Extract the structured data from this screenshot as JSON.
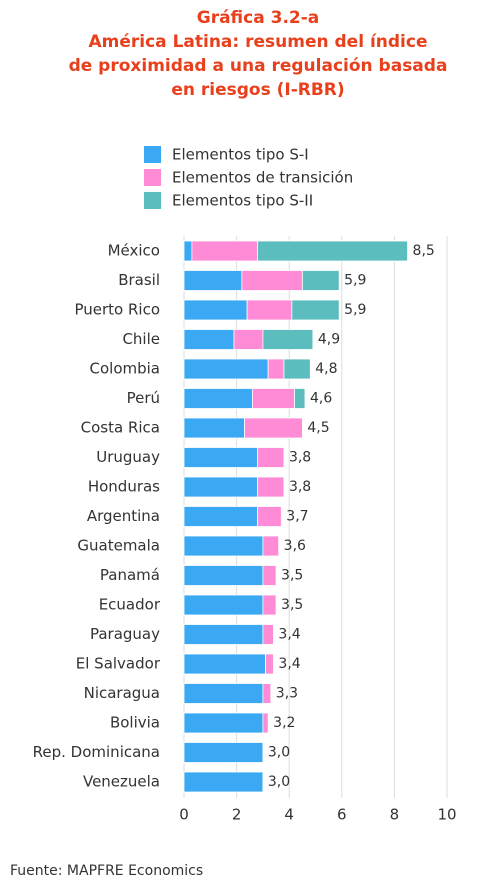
{
  "chart_data": {
    "type": "stacked_barh",
    "title": [
      "Gráfica 3.2-a",
      "América Latina: resumen del índice",
      "de proximidad a una regulación basada",
      "en riesgos (I-RBR)"
    ],
    "categories": [
      "México",
      "Brasil",
      "Puerto Rico",
      "Chile",
      "Colombia",
      "Perú",
      "Costa Rica",
      "Uruguay",
      "Honduras",
      "Argentina",
      "Guatemala",
      "Panamá",
      "Ecuador",
      "Paraguay",
      "El Salvador",
      "Nicaragua",
      "Bolivia",
      "Rep. Dominicana",
      "Venezuela"
    ],
    "series": [
      {
        "name": "Elementos tipo S-I",
        "color": "#3aa8f2",
        "values": [
          0.3,
          2.2,
          2.4,
          1.9,
          3.2,
          2.6,
          2.3,
          2.8,
          2.8,
          2.8,
          3.0,
          3.0,
          3.0,
          3.0,
          3.1,
          3.0,
          3.0,
          3.0,
          3.0
        ]
      },
      {
        "name": "Elementos de transición",
        "color": "#ff8ad6",
        "values": [
          2.5,
          2.3,
          1.7,
          1.1,
          0.6,
          1.6,
          2.2,
          1.0,
          1.0,
          0.9,
          0.6,
          0.5,
          0.5,
          0.4,
          0.3,
          0.3,
          0.2,
          0.0,
          0.0
        ]
      },
      {
        "name": "Elementos tipo S-II",
        "color": "#5bbdbd",
        "values": [
          5.7,
          1.4,
          1.8,
          1.9,
          1.0,
          0.4,
          0.0,
          0.0,
          0.0,
          0.0,
          0.0,
          0.0,
          0.0,
          0.0,
          0.0,
          0.0,
          0.0,
          0.0,
          0.0
        ]
      }
    ],
    "totals": [
      8.5,
      5.9,
      5.9,
      4.9,
      4.8,
      4.6,
      4.5,
      3.8,
      3.8,
      3.7,
      3.6,
      3.5,
      3.5,
      3.4,
      3.4,
      3.3,
      3.2,
      3.0,
      3.0
    ],
    "value_labels": [
      "8,5",
      "5,9",
      "5,9",
      "4,9",
      "4,8",
      "4,6",
      "4,5",
      "3,8",
      "3,8",
      "3,7",
      "3,6",
      "3,5",
      "3,5",
      "3,4",
      "3,4",
      "3,3",
      "3,2",
      "3,0",
      "3,0"
    ],
    "xlim": [
      0,
      10
    ],
    "xticks": [
      0,
      2,
      4,
      6,
      8,
      10
    ],
    "grid": true,
    "source": "Fuente: MAPFRE Economics"
  }
}
